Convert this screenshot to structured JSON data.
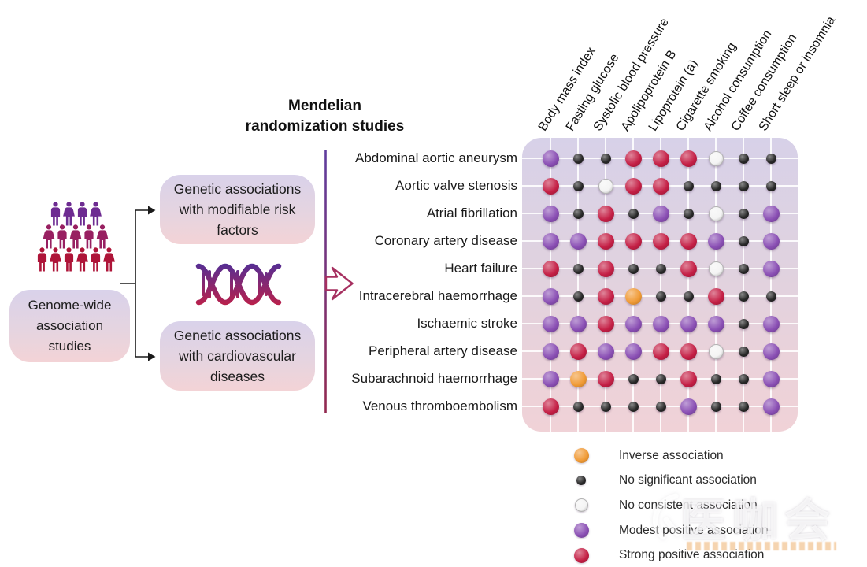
{
  "left_panel": {
    "gwas_box_label": "Genome-wide association studies",
    "risk_box_label": "Genetic associations with modifiable risk factors",
    "disease_box_label": "Genetic associations with cardiovascular diseases",
    "crowd": {
      "rows": [
        {
          "count": 4,
          "color": "#6d2b91"
        },
        {
          "count": 5,
          "color": "#982061"
        },
        {
          "count": 6,
          "color": "#ae1438"
        }
      ]
    }
  },
  "title": {
    "line1": "Mendelian",
    "line2": "randomization studies"
  },
  "chart_data": {
    "type": "heatmap",
    "columns": [
      "Body mass index",
      "Fasting glucose",
      "Systolic blood pressure",
      "Apolipoprotein B",
      "Lipoprotein (a)",
      "Cigarette smoking",
      "Alcohol consumption",
      "Coffee consumption",
      "Short sleep or insomnia"
    ],
    "rows": [
      "Abdominal aortic aneurysm",
      "Aortic valve stenosis",
      "Atrial fibrillation",
      "Coronary artery disease",
      "Heart failure",
      "Intracerebral haemorrhage",
      "Ischaemic stroke",
      "Peripheral artery disease",
      "Subarachnoid haemorrhage",
      "Venous thromboembolism"
    ],
    "legend": [
      {
        "key": "inverse",
        "label": "Inverse association",
        "color": "#f09a35"
      },
      {
        "key": "none",
        "label": "No significant association",
        "color": "#262626"
      },
      {
        "key": "inconsistent",
        "label": "No consistent association",
        "color": "#f4f4f4"
      },
      {
        "key": "modest",
        "label": "Modest positive association",
        "color": "#8a4fb4"
      },
      {
        "key": "strong",
        "label": "Strong positive association",
        "color": "#c41f45"
      }
    ],
    "matrix": [
      [
        "modest",
        "none",
        "none",
        "strong",
        "strong",
        "strong",
        "inconsistent",
        "none",
        "none"
      ],
      [
        "strong",
        "none",
        "inconsistent",
        "strong",
        "strong",
        "none",
        "none",
        "none",
        "none"
      ],
      [
        "modest",
        "none",
        "strong",
        "none",
        "modest",
        "none",
        "inconsistent",
        "none",
        "modest"
      ],
      [
        "modest",
        "modest",
        "strong",
        "strong",
        "strong",
        "strong",
        "modest",
        "none",
        "modest"
      ],
      [
        "strong",
        "none",
        "strong",
        "none",
        "none",
        "strong",
        "inconsistent",
        "none",
        "modest"
      ],
      [
        "modest",
        "none",
        "strong",
        "inverse",
        "none",
        "none",
        "strong",
        "none",
        "none"
      ],
      [
        "modest",
        "modest",
        "strong",
        "modest",
        "modest",
        "modest",
        "modest",
        "none",
        "modest"
      ],
      [
        "modest",
        "strong",
        "modest",
        "modest",
        "strong",
        "strong",
        "inconsistent",
        "none",
        "modest"
      ],
      [
        "modest",
        "inverse",
        "strong",
        "none",
        "none",
        "strong",
        "none",
        "none",
        "modest"
      ],
      [
        "strong",
        "none",
        "none",
        "none",
        "none",
        "modest",
        "none",
        "none",
        "modest"
      ]
    ]
  },
  "watermark": {
    "text": "医咖会"
  }
}
